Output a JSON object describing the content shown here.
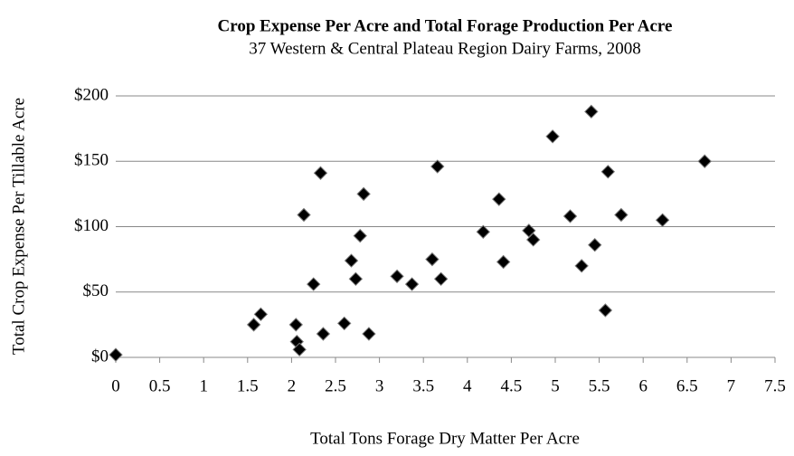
{
  "chart_data": {
    "type": "scatter",
    "title": "Crop Expense Per Acre and Total Forage Production Per Acre",
    "subtitle": "37 Western & Central Plateau Region  Dairy Farms, 2008",
    "x_label": "Total Tons Forage Dry Matter Per Acre",
    "y_label": "Total Crop Expense Per Tillable Acre",
    "color": "#000000",
    "grid": true,
    "x": [
      0,
      1.57,
      1.65,
      2.05,
      2.06,
      2.09,
      2.14,
      2.25,
      2.33,
      2.36,
      2.6,
      2.68,
      2.73,
      2.78,
      2.82,
      2.88,
      3.2,
      3.37,
      3.6,
      3.66,
      3.7,
      4.18,
      4.36,
      4.41,
      4.7,
      4.75,
      4.97,
      5.17,
      5.3,
      5.41,
      5.45,
      5.57,
      5.6,
      5.75,
      6.22,
      6.7
    ],
    "values": [
      2,
      25,
      33,
      25,
      12,
      6,
      109,
      56,
      141,
      18,
      26,
      74,
      60,
      93,
      125,
      18,
      62,
      56,
      75,
      146,
      60,
      96,
      121,
      73,
      97,
      90,
      169,
      108,
      70,
      188,
      86,
      36,
      142,
      109,
      105,
      150
    ],
    "xlim": [
      0,
      7.5
    ],
    "xticks": [
      0,
      0.5,
      1,
      1.5,
      2,
      2.5,
      3,
      3.5,
      4,
      4.5,
      5,
      5.5,
      6,
      6.5,
      7,
      7.5
    ],
    "ylim": [
      0,
      200
    ],
    "yticks": [
      {
        "value": 0,
        "label": "$0"
      },
      {
        "value": 50,
        "label": "$50"
      },
      {
        "value": 100,
        "label": "$100"
      },
      {
        "value": 150,
        "label": "$150"
      },
      {
        "value": 200,
        "label": "$200"
      }
    ]
  }
}
